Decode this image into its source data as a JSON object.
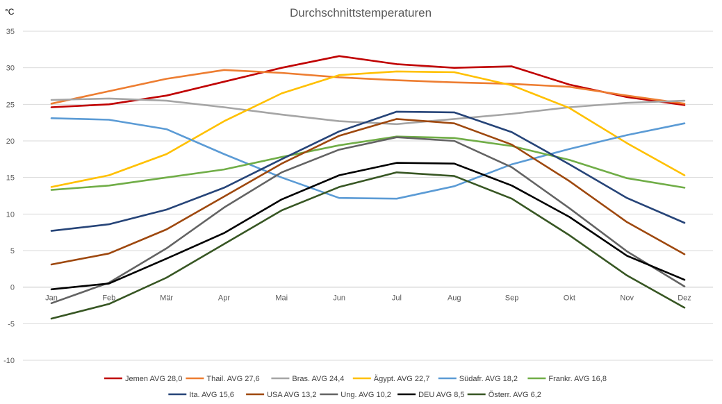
{
  "chart_data": {
    "type": "line",
    "title": "Durchschnittstemperaturen",
    "ylabel": "°C",
    "xlabel": "",
    "categories": [
      "Jan",
      "Feb",
      "Mär",
      "Apr",
      "Mai",
      "Jun",
      "Jul",
      "Aug",
      "Sep",
      "Okt",
      "Nov",
      "Dez"
    ],
    "ylim": [
      -10,
      35
    ],
    "ytick_step": 5,
    "yticks": [
      "35",
      "30",
      "25",
      "20",
      "15",
      "10",
      "5",
      "0",
      "-5",
      "-10"
    ],
    "grid": true,
    "legend_position": "bottom",
    "series": [
      {
        "name": "Jemen AVG 28,0",
        "color": "#C00000",
        "values": [
          24.6,
          25.0,
          26.2,
          28.1,
          30.0,
          31.6,
          30.5,
          30.0,
          30.2,
          27.7,
          26.0,
          24.9
        ]
      },
      {
        "name": "Thail. AVG 27,6",
        "color": "#ED7D31",
        "values": [
          25.1,
          26.8,
          28.5,
          29.7,
          29.3,
          28.7,
          28.3,
          28.0,
          27.8,
          27.4,
          26.2,
          25.1
        ]
      },
      {
        "name": "Bras. AVG 24,4",
        "color": "#A5A5A5",
        "values": [
          25.6,
          25.8,
          25.5,
          24.6,
          23.6,
          22.7,
          22.3,
          23.0,
          23.7,
          24.6,
          25.2,
          25.5
        ]
      },
      {
        "name": "Ägypt. AVG 22,7",
        "color": "#FFC000",
        "values": [
          13.7,
          15.3,
          18.2,
          22.7,
          26.5,
          29.0,
          29.5,
          29.4,
          27.6,
          24.5,
          19.7,
          15.3
        ]
      },
      {
        "name": "Südafr. AVG 18,2",
        "color": "#5B9BD5",
        "values": [
          23.1,
          22.9,
          21.6,
          18.2,
          15.0,
          12.2,
          12.1,
          13.8,
          16.8,
          18.9,
          20.8,
          22.4
        ]
      },
      {
        "name": "Frankr. AVG 16,8",
        "color": "#70AD47",
        "values": [
          13.3,
          13.9,
          15.0,
          16.1,
          17.8,
          19.4,
          20.6,
          20.4,
          19.3,
          17.4,
          14.9,
          13.6
        ]
      },
      {
        "name": "Ita. AVG 15,6",
        "color": "#264478",
        "values": [
          7.7,
          8.6,
          10.6,
          13.6,
          17.5,
          21.3,
          24.0,
          23.9,
          21.2,
          16.8,
          12.2,
          8.8
        ]
      },
      {
        "name": "USA AVG 13,2",
        "color": "#9E480E",
        "values": [
          3.1,
          4.6,
          7.9,
          12.4,
          16.9,
          20.7,
          23.0,
          22.4,
          19.5,
          14.5,
          8.9,
          4.5
        ]
      },
      {
        "name": "Ung. AVG 10,2",
        "color": "#636363",
        "values": [
          -2.2,
          0.6,
          5.3,
          10.9,
          15.7,
          18.8,
          20.5,
          20.0,
          16.4,
          10.8,
          4.9,
          0.1
        ]
      },
      {
        "name": "DEU AVG 8,5",
        "color": "#000000",
        "values": [
          -0.3,
          0.5,
          3.9,
          7.4,
          12.0,
          15.3,
          17.0,
          16.9,
          13.9,
          9.6,
          4.3,
          1.0
        ]
      },
      {
        "name": "Österr. AVG 6,2",
        "color": "#375623",
        "values": [
          -4.3,
          -2.3,
          1.3,
          5.9,
          10.5,
          13.7,
          15.7,
          15.2,
          12.1,
          7.1,
          1.6,
          -2.8
        ]
      }
    ]
  }
}
